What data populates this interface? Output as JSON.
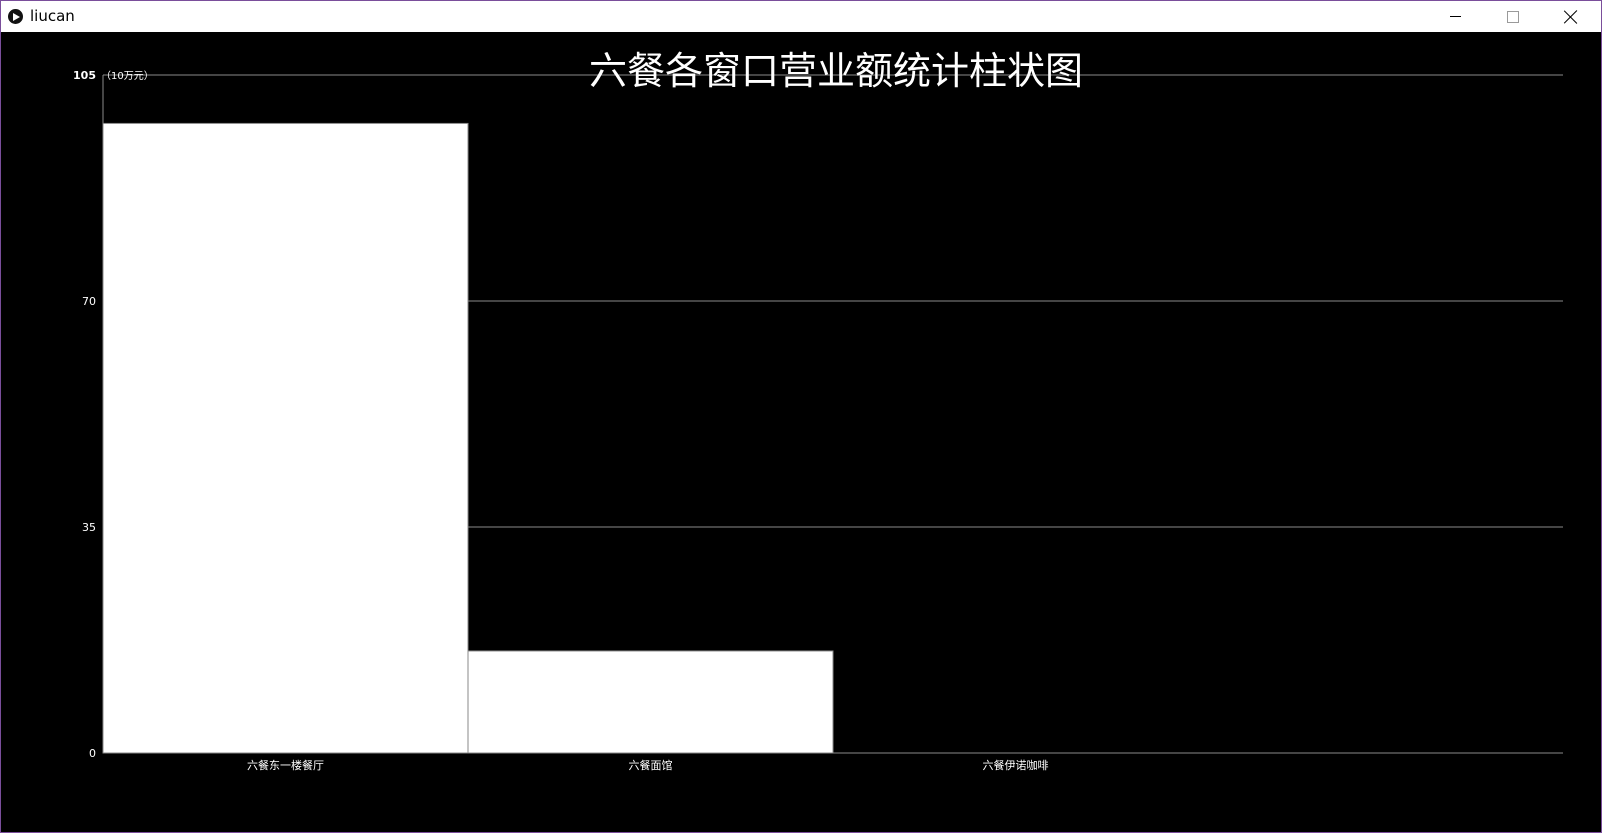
{
  "window": {
    "title": "liucan",
    "controls": {
      "minimize": "minimize",
      "maximize": "maximize",
      "close": "close"
    }
  },
  "chart_data": {
    "type": "bar",
    "title": "六餐各窗口营业额统计柱状图",
    "unit_label": "（10万元）",
    "categories": [
      "六餐东一楼餐厅",
      "六餐面馆",
      "六餐伊诺咖啡"
    ],
    "values": [
      97.5,
      15.8,
      0
    ],
    "ylim": [
      0,
      105
    ],
    "yticks": [
      0,
      35,
      70,
      105
    ],
    "grid": true,
    "colors": {
      "background": "#000000",
      "bar": "#ffffff",
      "grid": "#8a8a8a",
      "text": "#ffffff"
    }
  }
}
